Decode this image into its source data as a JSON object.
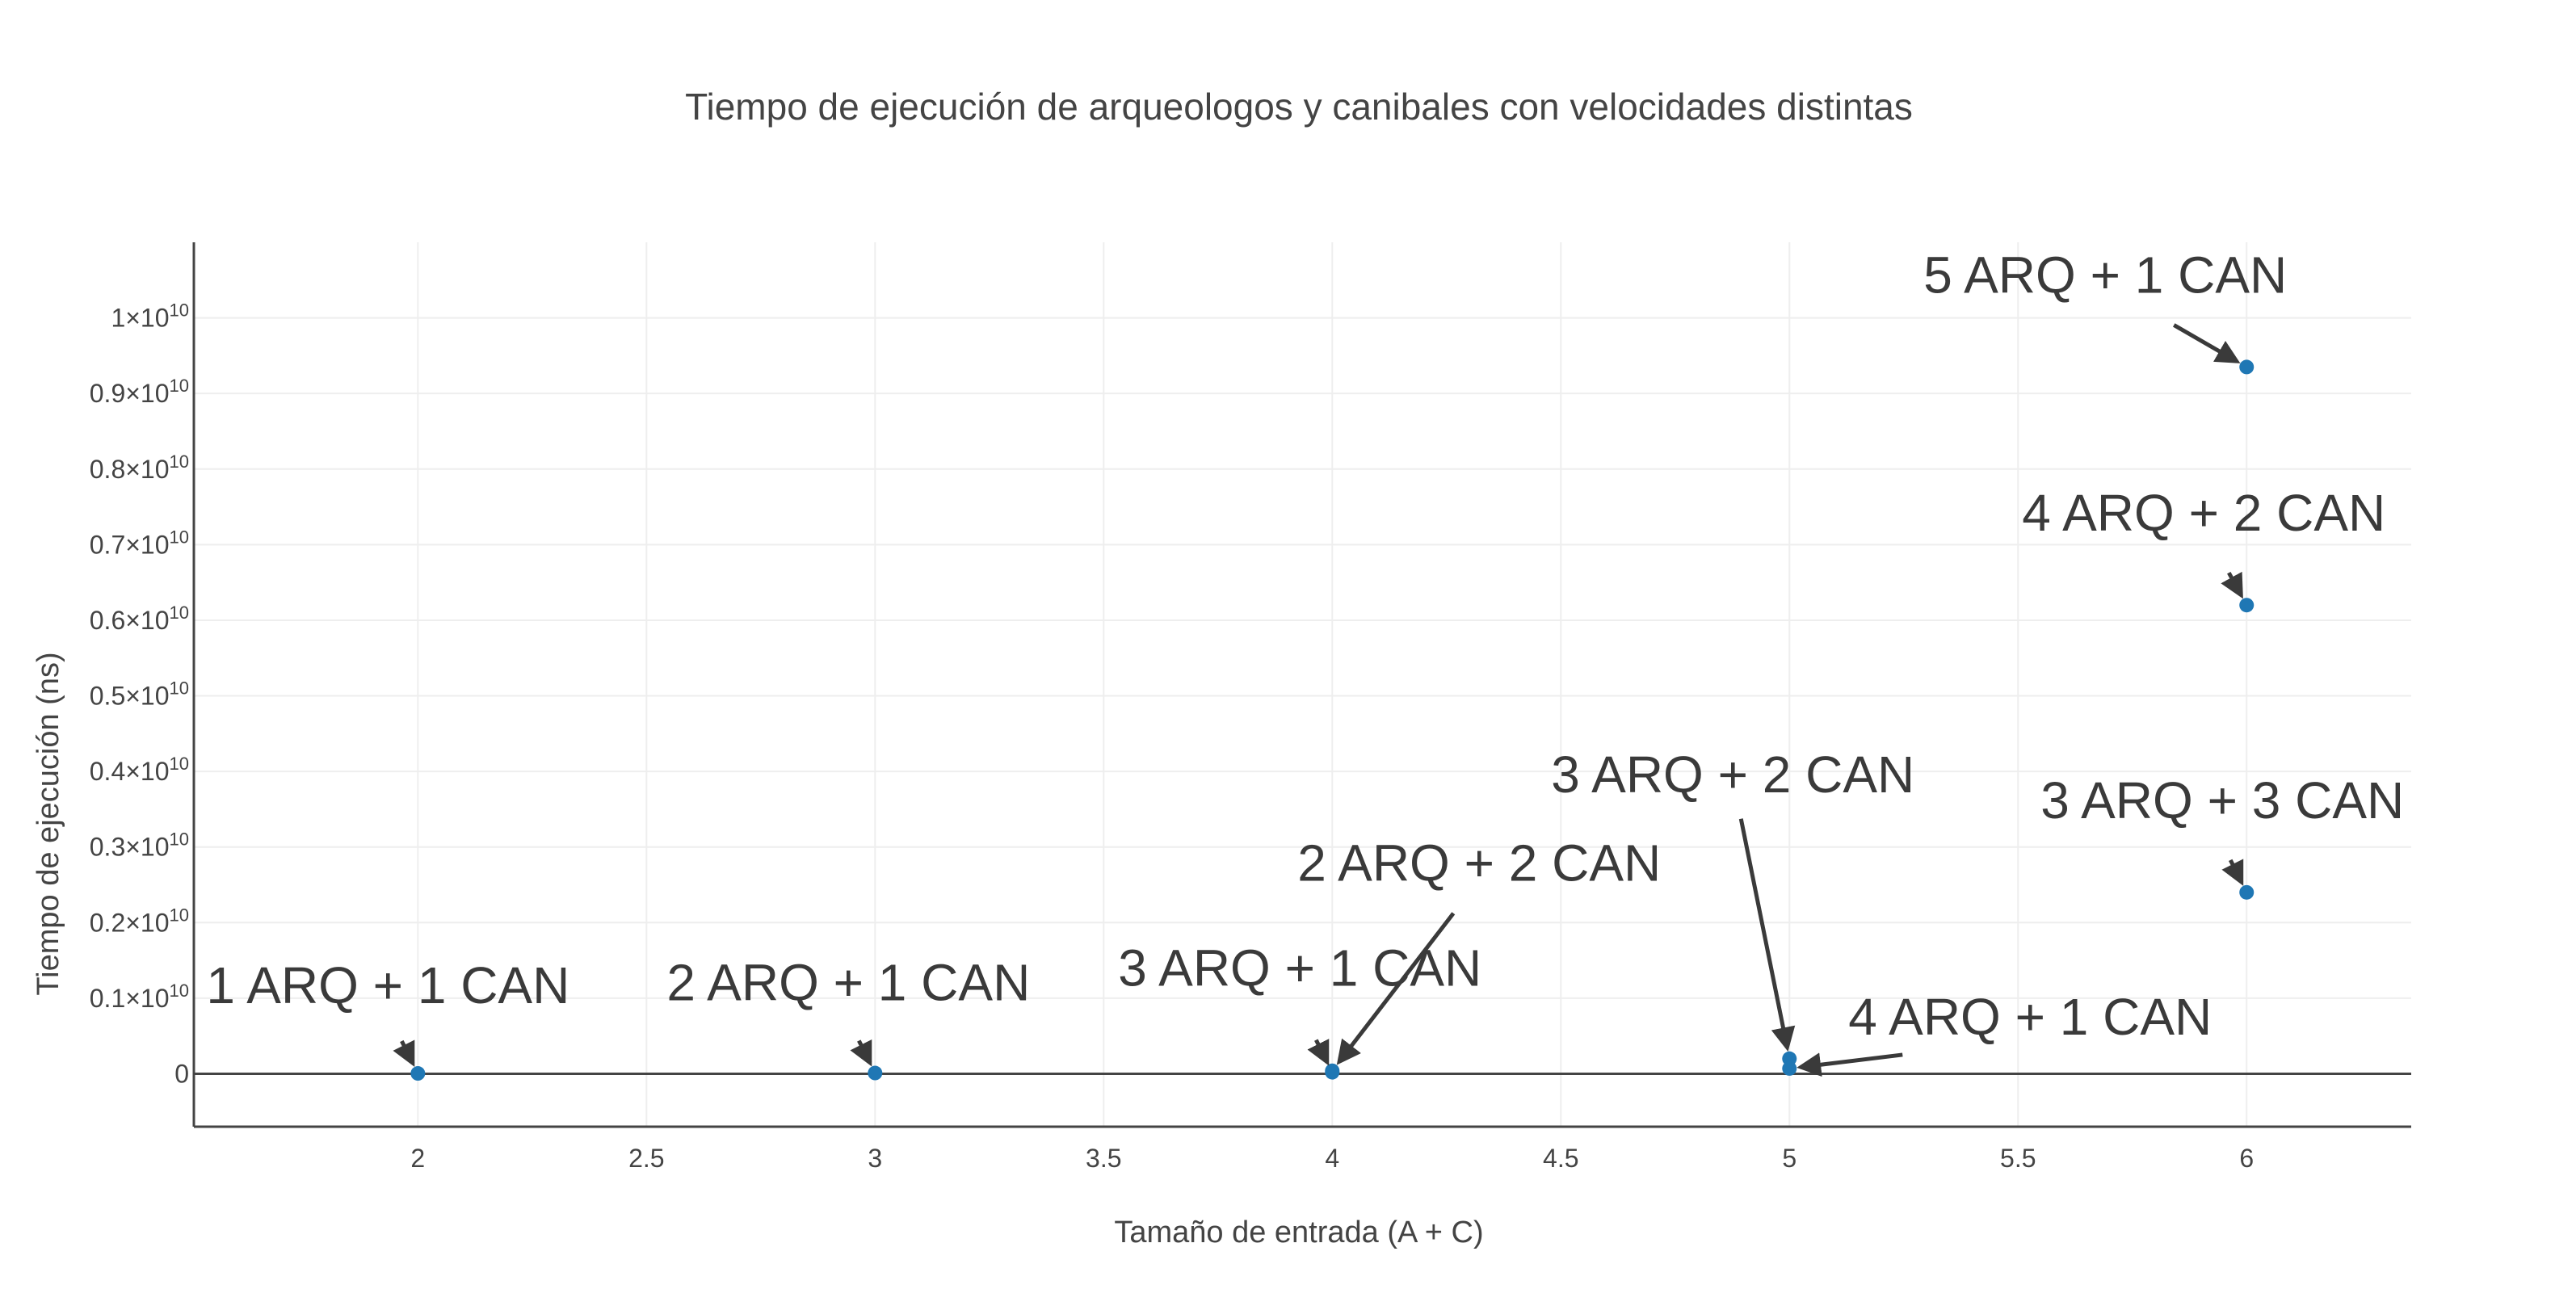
{
  "chart_data": {
    "type": "scatter",
    "title": "Tiempo de ejecución  de arqueologos y canibales con velocidades distintas",
    "xlabel": "Tamaño de entrada (A + C)",
    "ylabel": "Tiempo de ejecución (ns)",
    "xlim": [
      1.51,
      6.36
    ],
    "ylim": [
      -700000000,
      11000000000
    ],
    "x_ticks": [
      2,
      2.5,
      3,
      3.5,
      4,
      4.5,
      5,
      5.5,
      6
    ],
    "x_tick_labels": [
      "2",
      "2.5",
      "3",
      "3.5",
      "4",
      "4.5",
      "5",
      "5.5",
      "6"
    ],
    "y_ticks": [
      0,
      1000000000,
      2000000000,
      3000000000,
      4000000000,
      5000000000,
      6000000000,
      7000000000,
      8000000000,
      9000000000,
      10000000000
    ],
    "y_tick_labels": [
      {
        "mantissa": "0",
        "exp": ""
      },
      {
        "mantissa": "0.1×10",
        "exp": "10"
      },
      {
        "mantissa": "0.2×10",
        "exp": "10"
      },
      {
        "mantissa": "0.3×10",
        "exp": "10"
      },
      {
        "mantissa": "0.4×10",
        "exp": "10"
      },
      {
        "mantissa": "0.5×10",
        "exp": "10"
      },
      {
        "mantissa": "0.6×10",
        "exp": "10"
      },
      {
        "mantissa": "0.7×10",
        "exp": "10"
      },
      {
        "mantissa": "0.8×10",
        "exp": "10"
      },
      {
        "mantissa": "0.9×10",
        "exp": "10"
      },
      {
        "mantissa": "1×10",
        "exp": "10"
      }
    ],
    "grid": true,
    "legend": false,
    "color": "#1f77b4",
    "points": [
      {
        "x": 2,
        "y": 5000000,
        "label": "1 ARQ + 1 CAN"
      },
      {
        "x": 3,
        "y": 10000000,
        "label": "2 ARQ + 1 CAN"
      },
      {
        "x": 4,
        "y": 20000000,
        "label": "3 ARQ + 1 CAN"
      },
      {
        "x": 4,
        "y": 40000000,
        "label": "2 ARQ + 2 CAN"
      },
      {
        "x": 5,
        "y": 200000000,
        "label": "3 ARQ + 2 CAN"
      },
      {
        "x": 5,
        "y": 70000000,
        "label": "4 ARQ + 1 CAN"
      },
      {
        "x": 6,
        "y": 2400000000,
        "label": "3 ARQ + 3 CAN"
      },
      {
        "x": 6,
        "y": 6200000000,
        "label": "4 ARQ + 2 CAN"
      },
      {
        "x": 6,
        "y": 9350000000,
        "label": "5 ARQ + 1 CAN"
      }
    ]
  }
}
